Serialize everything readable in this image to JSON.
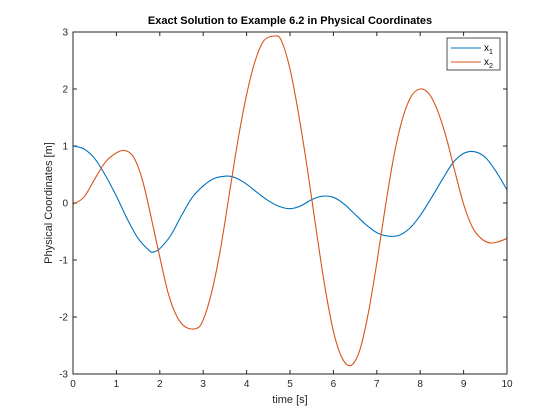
{
  "chart_data": {
    "type": "line",
    "title": "Exact Solution to Example 6.2 in Physical Coordinates",
    "xlabel": "time [s]",
    "ylabel": "Physical Coordinates [m]",
    "xlim": [
      0,
      10
    ],
    "ylim": [
      -3,
      3
    ],
    "xticks": [
      0,
      1,
      2,
      3,
      4,
      5,
      6,
      7,
      8,
      9,
      10
    ],
    "yticks": [
      -3,
      -2,
      -1,
      0,
      1,
      2,
      3
    ],
    "grid": false,
    "legend_position": "top-right",
    "series": [
      {
        "name": "x1",
        "label_base": "x",
        "label_sub": "1",
        "color": "#0072bd",
        "x": [
          0,
          0.25,
          0.5,
          0.75,
          1,
          1.25,
          1.5,
          1.75,
          1.85,
          2,
          2.25,
          2.5,
          2.75,
          3,
          3.25,
          3.5,
          3.6,
          3.75,
          4,
          4.25,
          4.5,
          4.75,
          5,
          5.25,
          5.5,
          5.75,
          6,
          6.25,
          6.5,
          6.75,
          7,
          7.25,
          7.5,
          7.75,
          8,
          8.25,
          8.5,
          8.75,
          9,
          9.25,
          9.5,
          9.75,
          10
        ],
        "y": [
          1.0,
          0.95,
          0.78,
          0.48,
          0.12,
          -0.28,
          -0.62,
          -0.83,
          -0.86,
          -0.8,
          -0.57,
          -0.22,
          0.1,
          0.3,
          0.43,
          0.47,
          0.47,
          0.44,
          0.33,
          0.18,
          0.04,
          -0.06,
          -0.1,
          -0.05,
          0.06,
          0.12,
          0.1,
          -0.02,
          -0.2,
          -0.38,
          -0.52,
          -0.58,
          -0.57,
          -0.45,
          -0.22,
          0.08,
          0.4,
          0.7,
          0.87,
          0.9,
          0.8,
          0.55,
          0.23
        ]
      },
      {
        "name": "x2",
        "label_base": "x",
        "label_sub": "2",
        "color": "#d95319",
        "x": [
          0,
          0.25,
          0.5,
          0.75,
          1,
          1.2,
          1.4,
          1.6,
          1.8,
          2,
          2.2,
          2.4,
          2.6,
          2.85,
          3,
          3.2,
          3.4,
          3.6,
          3.8,
          4,
          4.2,
          4.4,
          4.65,
          4.8,
          5,
          5.2,
          5.4,
          5.6,
          5.8,
          6,
          6.2,
          6.4,
          6.6,
          6.8,
          7,
          7.2,
          7.4,
          7.6,
          7.8,
          8,
          8.2,
          8.4,
          8.6,
          8.8,
          9,
          9.2,
          9.4,
          9.6,
          9.8,
          10
        ],
        "y": [
          -0.02,
          0.1,
          0.42,
          0.72,
          0.88,
          0.92,
          0.8,
          0.4,
          -0.25,
          -0.95,
          -1.6,
          -2.0,
          -2.18,
          -2.2,
          -2.05,
          -1.55,
          -0.8,
          0.15,
          1.1,
          1.9,
          2.5,
          2.85,
          2.93,
          2.85,
          2.35,
          1.55,
          0.6,
          -0.45,
          -1.45,
          -2.25,
          -2.72,
          -2.85,
          -2.6,
          -1.95,
          -1.05,
          -0.05,
          0.85,
          1.5,
          1.88,
          2.0,
          1.92,
          1.62,
          1.15,
          0.55,
          -0.02,
          -0.42,
          -0.62,
          -0.7,
          -0.68,
          -0.62
        ]
      }
    ]
  }
}
